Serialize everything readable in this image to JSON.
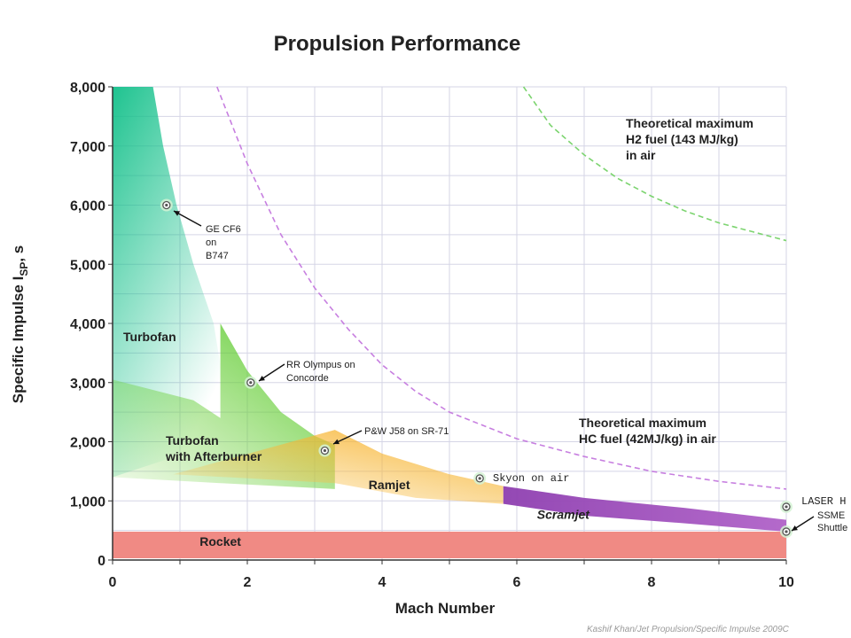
{
  "chart_data": {
    "type": "area",
    "title": "Propulsion Performance",
    "xlabel": "Mach Number",
    "ylabel": "Specific Impulse I",
    "ylabel_sub": "SP",
    "ylabel_suffix": ", s",
    "xlim": [
      0,
      10
    ],
    "ylim": [
      0,
      8000
    ],
    "x_ticks": [
      0,
      2,
      4,
      6,
      8,
      10
    ],
    "x_tick_labels": [
      "0",
      "2",
      "4",
      "6",
      "8",
      "10"
    ],
    "y_ticks": [
      0,
      1000,
      2000,
      3000,
      4000,
      5000,
      6000,
      7000,
      8000
    ],
    "y_tick_labels": [
      "0",
      "1,000",
      "2,000",
      "3,000",
      "4,000",
      "5,000",
      "6,000",
      "7,000",
      "8,000"
    ],
    "grid": true,
    "regions": [
      {
        "name": "Turbofan",
        "label": "Turbofan",
        "color": "#1dbf8a",
        "upper": [
          [
            0,
            8000
          ],
          [
            0.6,
            8000
          ],
          [
            0.75,
            7000
          ],
          [
            0.95,
            6000
          ],
          [
            1.2,
            5000
          ],
          [
            1.5,
            4000
          ],
          [
            1.6,
            3300
          ]
        ],
        "lower": [
          [
            0,
            1400
          ],
          [
            0.8,
            1700
          ],
          [
            1.6,
            2200
          ]
        ]
      },
      {
        "name": "Turbofan with Afterburner",
        "label": [
          "Turbofan",
          "with Afterburner"
        ],
        "color": "#7ad13a",
        "upper": [
          [
            0,
            3050
          ],
          [
            1.2,
            2700
          ],
          [
            1.6,
            2400
          ],
          [
            1.6,
            4000
          ],
          [
            2,
            3200
          ],
          [
            2.5,
            2500
          ],
          [
            3,
            2100
          ],
          [
            3.3,
            1950
          ]
        ],
        "lower": [
          [
            0,
            1400
          ],
          [
            1.6,
            1300
          ],
          [
            3.3,
            1200
          ]
        ]
      },
      {
        "name": "Ramjet",
        "label": "Ramjet",
        "color": "#f7b22a",
        "upper": [
          [
            3.3,
            2200
          ],
          [
            4,
            1800
          ],
          [
            5,
            1450
          ],
          [
            5.8,
            1250
          ]
        ],
        "lower": [
          [
            0.9,
            1450
          ],
          [
            3.3,
            1300
          ],
          [
            4.5,
            1050
          ],
          [
            5.8,
            950
          ]
        ]
      },
      {
        "name": "Scramjet",
        "label": "Scramjet",
        "color": "#a44ac0",
        "upper": [
          [
            5.8,
            1250
          ],
          [
            7,
            1050
          ],
          [
            8.5,
            880
          ],
          [
            10,
            680
          ]
        ],
        "lower": [
          [
            5.8,
            950
          ],
          [
            7,
            750
          ],
          [
            8.5,
            620
          ],
          [
            10,
            480
          ]
        ]
      },
      {
        "name": "Rocket",
        "label": "Rocket",
        "color": "#f07c7c",
        "upper": [
          [
            0,
            480
          ],
          [
            10,
            480
          ]
        ],
        "lower": [
          [
            0,
            30
          ],
          [
            10,
            30
          ]
        ]
      }
    ],
    "curves": [
      {
        "name": "Theoretical maximum HC fuel (42MJ/kg) in air",
        "label": [
          "Theoretical maximum",
          "HC fuel (42MJ/kg) in air"
        ],
        "color": "#c77fe0",
        "points": [
          [
            1.55,
            8000
          ],
          [
            2,
            6700
          ],
          [
            2.5,
            5500
          ],
          [
            3,
            4600
          ],
          [
            3.5,
            3900
          ],
          [
            4,
            3300
          ],
          [
            4.5,
            2850
          ],
          [
            5,
            2500
          ],
          [
            6,
            2050
          ],
          [
            7,
            1750
          ],
          [
            8,
            1500
          ],
          [
            9,
            1330
          ],
          [
            10,
            1200
          ]
        ]
      },
      {
        "name": "Theoretical maximum H2 fuel (143 MJ/kg) in air",
        "label": [
          "Theoretical maximum",
          "H2 fuel (143 MJ/kg)",
          "in air"
        ],
        "color": "#7cd46f",
        "points": [
          [
            6.1,
            8000
          ],
          [
            6.5,
            7350
          ],
          [
            7,
            6850
          ],
          [
            7.5,
            6450
          ],
          [
            8,
            6150
          ],
          [
            8.5,
            5900
          ],
          [
            9,
            5700
          ],
          [
            9.5,
            5550
          ],
          [
            10,
            5400
          ]
        ]
      }
    ],
    "points": [
      {
        "name": "GE CF6 on B747",
        "label": [
          "GE CF6",
          "on",
          "B747"
        ],
        "x": 0.8,
        "y": 6000
      },
      {
        "name": "RR Olympus on Concorde",
        "label": [
          "RR Olympus on",
          "Concorde"
        ],
        "x": 2.05,
        "y": 3000
      },
      {
        "name": "P&W J58 on SR-71",
        "label": [
          "P&W J58 on SR-71"
        ],
        "x": 3.15,
        "y": 1850
      },
      {
        "name": "Skyon on air",
        "label": [
          "Skyon on air"
        ],
        "x": 5.45,
        "y": 1380
      },
      {
        "name": "LASER H",
        "label": [
          "LASER H"
        ],
        "x": 10,
        "y": 900
      },
      {
        "name": "SSME Shuttle",
        "label": [
          "SSME",
          "Shuttle"
        ],
        "x": 10,
        "y": 480
      }
    ]
  },
  "credit": "Kashif Khan/Jet Propulsion/Specific Impulse 2009C"
}
